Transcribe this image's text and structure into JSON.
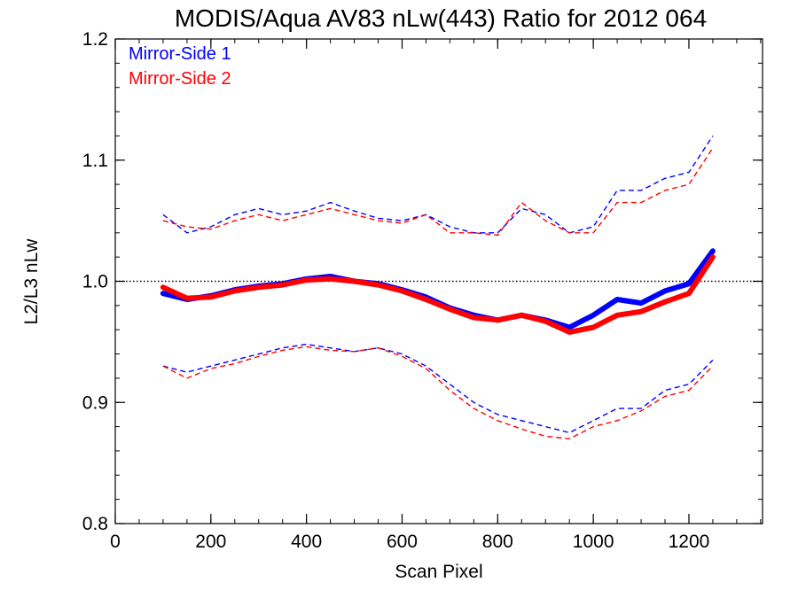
{
  "chart_data": {
    "type": "line",
    "title": "MODIS/Aqua AV83 nLw(443) Ratio for 2012 064",
    "xlabel": "Scan Pixel",
    "ylabel": "L2/L3 nLw",
    "xlim": [
      0,
      1354
    ],
    "ylim": [
      0.8,
      1.2
    ],
    "xticks": [
      0,
      200,
      400,
      600,
      800,
      1000,
      1200
    ],
    "xtick_labels": [
      "0",
      "200",
      "400",
      "600",
      "800",
      "1000",
      "1200"
    ],
    "yticks": [
      0.8,
      0.9,
      1.0,
      1.1,
      1.2
    ],
    "ytick_labels": [
      "0.8",
      "0.9",
      "1.0",
      "1.1",
      "1.2"
    ],
    "reference_line": 1.0,
    "legend": {
      "position": "top-left",
      "entries": [
        {
          "label": "Mirror-Side 1",
          "color": "#0000ff"
        },
        {
          "label": "Mirror-Side 2",
          "color": "#ff0000"
        }
      ]
    },
    "series": [
      {
        "name": "Mirror-Side 1",
        "color": "#0000ff",
        "mean": {
          "x": [
            100,
            150,
            200,
            250,
            300,
            350,
            400,
            450,
            500,
            550,
            600,
            650,
            700,
            750,
            800,
            850,
            900,
            950,
            1000,
            1050,
            1100,
            1150,
            1200,
            1250
          ],
          "y": [
            0.99,
            0.985,
            0.988,
            0.993,
            0.996,
            0.998,
            1.002,
            1.004,
            1.0,
            0.998,
            0.993,
            0.987,
            0.978,
            0.972,
            0.968,
            0.972,
            0.968,
            0.962,
            0.972,
            0.985,
            0.982,
            0.992,
            0.998,
            1.025
          ]
        },
        "upper": {
          "x": [
            100,
            150,
            200,
            250,
            300,
            350,
            400,
            450,
            500,
            550,
            600,
            650,
            700,
            750,
            800,
            850,
            900,
            950,
            1000,
            1050,
            1100,
            1150,
            1200,
            1250
          ],
          "y": [
            1.055,
            1.04,
            1.045,
            1.055,
            1.06,
            1.055,
            1.058,
            1.065,
            1.058,
            1.052,
            1.05,
            1.055,
            1.045,
            1.04,
            1.04,
            1.06,
            1.055,
            1.04,
            1.045,
            1.075,
            1.075,
            1.085,
            1.09,
            1.12
          ]
        },
        "lower": {
          "x": [
            100,
            150,
            200,
            250,
            300,
            350,
            400,
            450,
            500,
            550,
            600,
            650,
            700,
            750,
            800,
            850,
            900,
            950,
            1000,
            1050,
            1100,
            1150,
            1200,
            1250
          ],
          "y": [
            0.93,
            0.925,
            0.93,
            0.935,
            0.94,
            0.945,
            0.948,
            0.945,
            0.942,
            0.945,
            0.94,
            0.93,
            0.915,
            0.9,
            0.89,
            0.885,
            0.88,
            0.875,
            0.885,
            0.895,
            0.895,
            0.91,
            0.915,
            0.935
          ]
        }
      },
      {
        "name": "Mirror-Side 2",
        "color": "#ff0000",
        "mean": {
          "x": [
            100,
            150,
            200,
            250,
            300,
            350,
            400,
            450,
            500,
            550,
            600,
            650,
            700,
            750,
            800,
            850,
            900,
            950,
            1000,
            1050,
            1100,
            1150,
            1200,
            1250
          ],
          "y": [
            0.995,
            0.986,
            0.987,
            0.992,
            0.995,
            0.997,
            1.001,
            1.002,
            1.0,
            0.997,
            0.992,
            0.985,
            0.977,
            0.97,
            0.968,
            0.972,
            0.967,
            0.958,
            0.962,
            0.972,
            0.975,
            0.983,
            0.99,
            1.02
          ]
        },
        "upper": {
          "x": [
            100,
            150,
            200,
            250,
            300,
            350,
            400,
            450,
            500,
            550,
            600,
            650,
            700,
            750,
            800,
            850,
            900,
            950,
            1000,
            1050,
            1100,
            1150,
            1200,
            1250
          ],
          "y": [
            1.05,
            1.045,
            1.043,
            1.05,
            1.055,
            1.05,
            1.055,
            1.06,
            1.055,
            1.05,
            1.048,
            1.055,
            1.04,
            1.04,
            1.038,
            1.065,
            1.05,
            1.04,
            1.04,
            1.065,
            1.065,
            1.075,
            1.08,
            1.11
          ]
        },
        "lower": {
          "x": [
            100,
            150,
            200,
            250,
            300,
            350,
            400,
            450,
            500,
            550,
            600,
            650,
            700,
            750,
            800,
            850,
            900,
            950,
            1000,
            1050,
            1100,
            1150,
            1200,
            1250
          ],
          "y": [
            0.93,
            0.92,
            0.928,
            0.932,
            0.938,
            0.943,
            0.946,
            0.943,
            0.942,
            0.945,
            0.938,
            0.928,
            0.91,
            0.895,
            0.885,
            0.878,
            0.872,
            0.87,
            0.88,
            0.885,
            0.893,
            0.905,
            0.91,
            0.93
          ]
        }
      }
    ]
  }
}
